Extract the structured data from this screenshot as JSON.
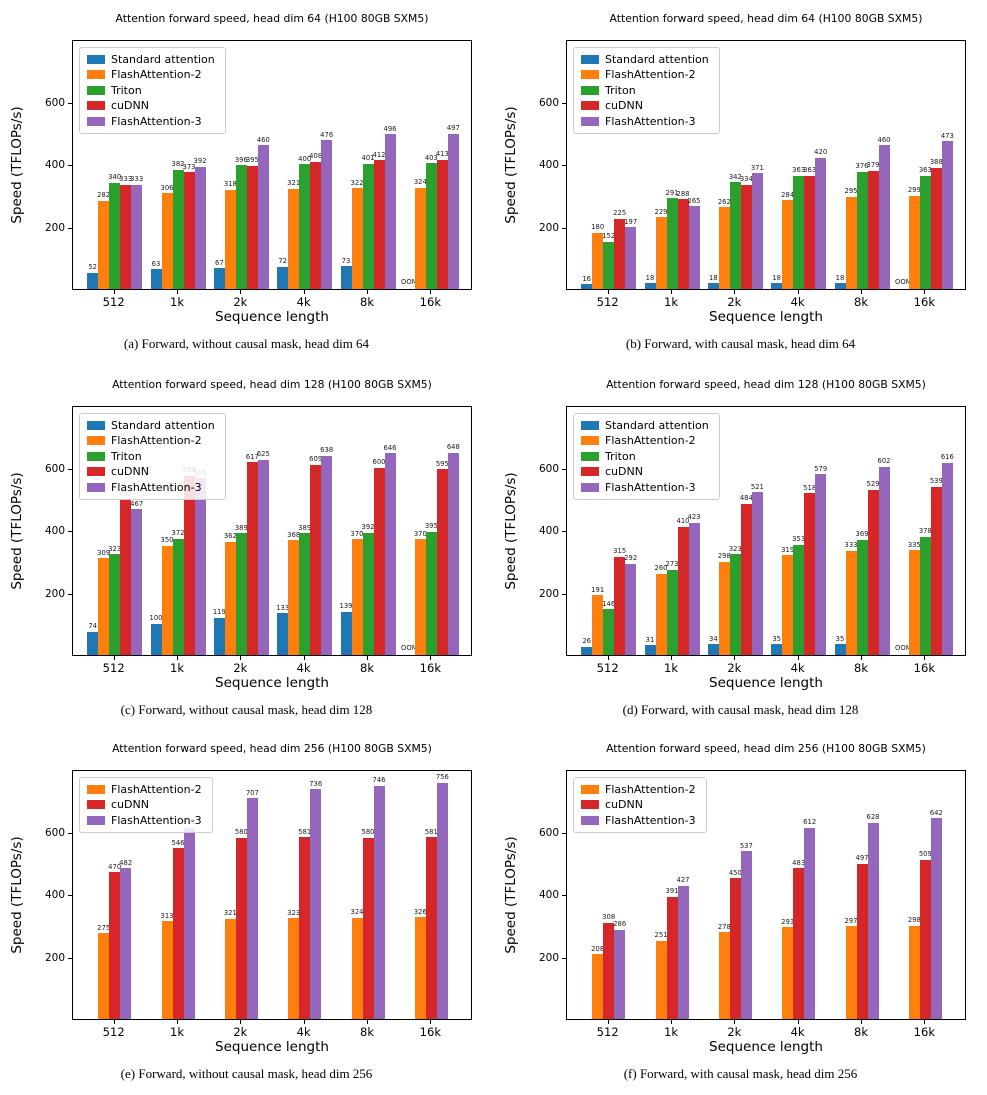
{
  "figure_name": "attention-forward-speed-benchmarks",
  "oom_text": "OOM",
  "colors": {
    "Standard attention": "#1f77b4",
    "FlashAttention-2": "#ff7f0e",
    "Triton": "#2ca02c",
    "cuDNN": "#d62728",
    "FlashAttention-3": "#9467bd"
  },
  "chart_data": [
    {
      "id": "a",
      "type": "bar",
      "title": "Attention forward speed, head dim 64 (H100 80GB SXM5)",
      "caption": "(a) Forward, without causal mask, head dim 64",
      "xlabel": "Sequence length",
      "ylabel": "Speed (TFLOPs/s)",
      "categories": [
        "512",
        "1k",
        "2k",
        "4k",
        "8k",
        "16k"
      ],
      "yticks": [
        200,
        400,
        600
      ],
      "ylim": [
        0,
        800
      ],
      "grid": false,
      "legend_position": "upper left",
      "series": [
        {
          "name": "Standard attention",
          "values": [
            52,
            63,
            67,
            72,
            73,
            null
          ]
        },
        {
          "name": "FlashAttention-2",
          "values": [
            282,
            306,
            318,
            321,
            322,
            324
          ]
        },
        {
          "name": "Triton",
          "values": [
            340,
            382,
            396,
            400,
            401,
            403
          ]
        },
        {
          "name": "cuDNN",
          "values": [
            333,
            373,
            395,
            408,
            412,
            413
          ]
        },
        {
          "name": "FlashAttention-3",
          "values": [
            333,
            392,
            460,
            476,
            496,
            497
          ]
        }
      ]
    },
    {
      "id": "b",
      "type": "bar",
      "title": "Attention forward speed, head dim 64 (H100 80GB SXM5)",
      "caption": "(b) Forward, with causal mask, head dim 64",
      "xlabel": "Sequence length",
      "ylabel": "Speed (TFLOPs/s)",
      "categories": [
        "512",
        "1k",
        "2k",
        "4k",
        "8k",
        "16k"
      ],
      "yticks": [
        200,
        400,
        600
      ],
      "ylim": [
        0,
        800
      ],
      "grid": false,
      "legend_position": "upper left",
      "series": [
        {
          "name": "Standard attention",
          "values": [
            16,
            18,
            18,
            18,
            18,
            null
          ]
        },
        {
          "name": "FlashAttention-2",
          "values": [
            180,
            229,
            262,
            284,
            295,
            299
          ]
        },
        {
          "name": "Triton",
          "values": [
            152,
            291,
            342,
            363,
            376,
            363
          ]
        },
        {
          "name": "cuDNN",
          "values": [
            225,
            288,
            334,
            363,
            379,
            388
          ]
        },
        {
          "name": "FlashAttention-3",
          "values": [
            197,
            265,
            371,
            420,
            460,
            473
          ]
        }
      ]
    },
    {
      "id": "c",
      "type": "bar",
      "title": "Attention forward speed, head dim 128 (H100 80GB SXM5)",
      "caption": "(c) Forward, without causal mask, head dim 128",
      "xlabel": "Sequence length",
      "ylabel": "Speed (TFLOPs/s)",
      "categories": [
        "512",
        "1k",
        "2k",
        "4k",
        "8k",
        "16k"
      ],
      "yticks": [
        200,
        400,
        600
      ],
      "ylim": [
        0,
        800
      ],
      "grid": false,
      "legend_position": "upper left",
      "series": [
        {
          "name": "Standard attention",
          "values": [
            74,
            100,
            119,
            133,
            139,
            null
          ]
        },
        {
          "name": "FlashAttention-2",
          "values": [
            309,
            350,
            362,
            368,
            370,
            370
          ]
        },
        {
          "name": "Triton",
          "values": [
            323,
            372,
            389,
            389,
            392,
            395
          ]
        },
        {
          "name": "cuDNN",
          "values": [
            497,
            574,
            617,
            609,
            600,
            595
          ]
        },
        {
          "name": "FlashAttention-3",
          "values": [
            467,
            565,
            625,
            638,
            646,
            648
          ]
        }
      ]
    },
    {
      "id": "d",
      "type": "bar",
      "title": "Attention forward speed, head dim 128 (H100 80GB SXM5)",
      "caption": "(d) Forward, with causal mask, head dim 128",
      "xlabel": "Sequence length",
      "ylabel": "Speed (TFLOPs/s)",
      "categories": [
        "512",
        "1k",
        "2k",
        "4k",
        "8k",
        "16k"
      ],
      "yticks": [
        200,
        400,
        600
      ],
      "ylim": [
        0,
        800
      ],
      "grid": false,
      "legend_position": "upper left",
      "series": [
        {
          "name": "Standard attention",
          "values": [
            26,
            31,
            34,
            35,
            35,
            null
          ]
        },
        {
          "name": "FlashAttention-2",
          "values": [
            191,
            260,
            298,
            319,
            333,
            335
          ]
        },
        {
          "name": "Triton",
          "values": [
            146,
            273,
            323,
            353,
            369,
            378
          ]
        },
        {
          "name": "cuDNN",
          "values": [
            315,
            410,
            484,
            518,
            529,
            539
          ]
        },
        {
          "name": "FlashAttention-3",
          "values": [
            292,
            423,
            521,
            579,
            602,
            616
          ]
        }
      ]
    },
    {
      "id": "e",
      "type": "bar",
      "title": "Attention forward speed, head dim 256 (H100 80GB SXM5)",
      "caption": "(e) Forward, without causal mask, head dim 256",
      "xlabel": "Sequence length",
      "ylabel": "Speed (TFLOPs/s)",
      "categories": [
        "512",
        "1k",
        "2k",
        "4k",
        "8k",
        "16k"
      ],
      "yticks": [
        200,
        400,
        600
      ],
      "ylim": [
        0,
        800
      ],
      "grid": false,
      "legend_position": "upper left",
      "series": [
        {
          "name": "FlashAttention-2",
          "values": [
            275,
            313,
            321,
            323,
            324,
            326
          ]
        },
        {
          "name": "cuDNN",
          "values": [
            470,
            546,
            580,
            581,
            580,
            581
          ]
        },
        {
          "name": "FlashAttention-3",
          "values": [
            482,
            612,
            707,
            736,
            746,
            756
          ]
        }
      ]
    },
    {
      "id": "f",
      "type": "bar",
      "title": "Attention forward speed, head dim 256 (H100 80GB SXM5)",
      "caption": "(f) Forward, with causal mask, head dim 256",
      "xlabel": "Sequence length",
      "ylabel": "Speed (TFLOPs/s)",
      "categories": [
        "512",
        "1k",
        "2k",
        "4k",
        "8k",
        "16k"
      ],
      "yticks": [
        200,
        400,
        600
      ],
      "ylim": [
        0,
        800
      ],
      "grid": false,
      "legend_position": "upper left",
      "series": [
        {
          "name": "FlashAttention-2",
          "values": [
            208,
            251,
            278,
            293,
            297,
            298
          ]
        },
        {
          "name": "cuDNN",
          "values": [
            308,
            391,
            450,
            483,
            497,
            509
          ]
        },
        {
          "name": "FlashAttention-3",
          "values": [
            286,
            427,
            537,
            612,
            628,
            642
          ]
        }
      ]
    }
  ]
}
